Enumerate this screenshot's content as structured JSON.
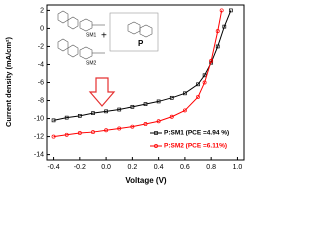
{
  "chart_data": {
    "type": "line",
    "xlabel": "Voltage (V)",
    "ylabel": "Current density (mA/cm²)",
    "xlim": [
      -0.45,
      1.05
    ],
    "xticks": [
      -0.4,
      -0.2,
      {
        "value": 0,
        "label": "0.0"
      },
      0.2,
      0.4,
      0.6,
      0.8,
      {
        "value": 1,
        "label": "1.0"
      }
    ],
    "ylim": [
      -14.6,
      2.6
    ],
    "yticks": [
      2,
      0,
      -2,
      -4,
      -6,
      -8,
      -10,
      -12,
      -14
    ],
    "legend": "lower right",
    "annotations": [
      "SM1",
      "SM2",
      "P",
      "+"
    ],
    "series": [
      {
        "name": "P:SM1 (PCE =4.94 %)",
        "color": "#000000",
        "marker": "square",
        "x": [
          -0.4,
          -0.3,
          -0.2,
          -0.1,
          0,
          0.1,
          0.2,
          0.3,
          0.4,
          0.5,
          0.6,
          0.7,
          0.75,
          0.8,
          0.85,
          0.9,
          0.95
        ],
        "values": [
          -10.2,
          -9.9,
          -9.7,
          -9.4,
          -9.2,
          -9.0,
          -8.7,
          -8.4,
          -8.1,
          -7.7,
          -7.2,
          -6.2,
          -5.2,
          -3.8,
          -2,
          0.2,
          2
        ]
      },
      {
        "name": "P:SM2 (PCE =6.11%)",
        "color": "#ff0000",
        "marker": "circle",
        "x": [
          -0.4,
          -0.3,
          -0.2,
          -0.1,
          0,
          0.1,
          0.2,
          0.3,
          0.4,
          0.5,
          0.6,
          0.7,
          0.75,
          0.8,
          0.85,
          0.88
        ],
        "values": [
          -12,
          -11.8,
          -11.6,
          -11.5,
          -11.3,
          -11.1,
          -10.9,
          -10.6,
          -10.3,
          -9.8,
          -9.1,
          -7.6,
          -6,
          -3.6,
          -0.3,
          2
        ]
      }
    ]
  }
}
